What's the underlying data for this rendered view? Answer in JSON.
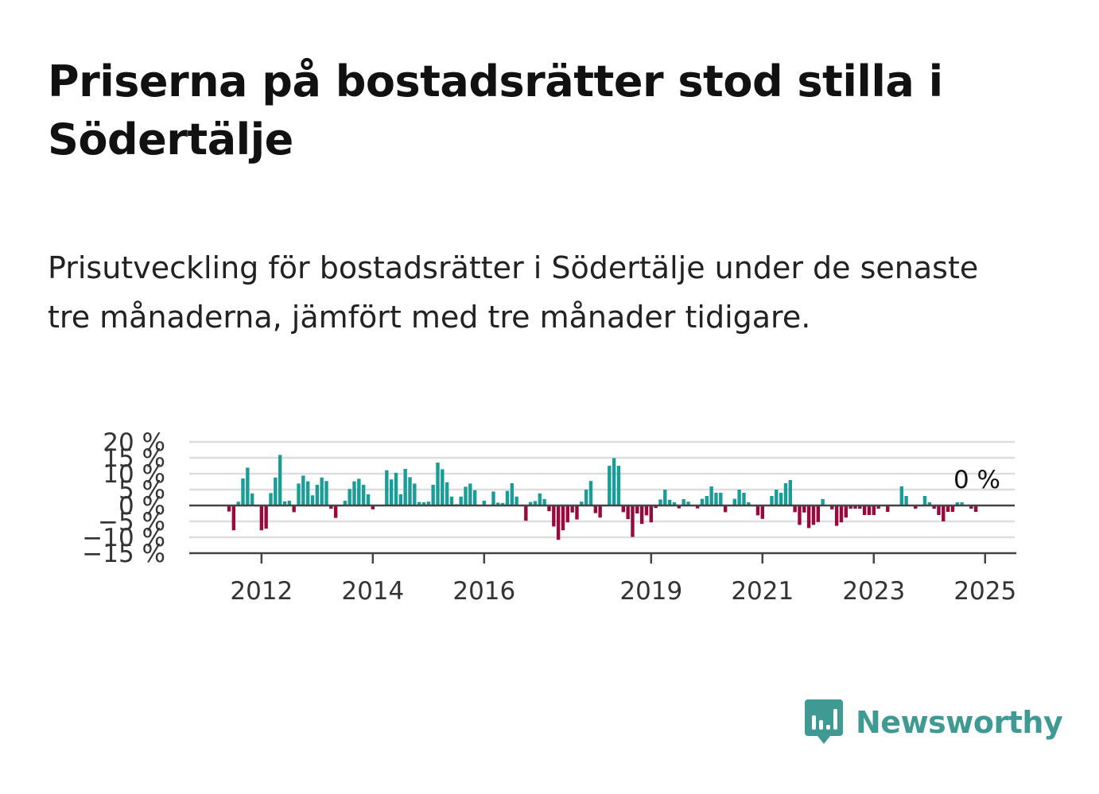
{
  "title": "Priserna på bostadsrätter stod stilla i Södertälje",
  "subtitle": "Prisutveckling för bostadsrätter i Södertälje under de senaste tre månaderna, jämfört med tre månader tidigare.",
  "brand": {
    "name": "Newsworthy",
    "icon": "newsworthy-logo-icon",
    "color": "#3f9a94"
  },
  "chart_data": {
    "type": "bar",
    "title": "",
    "xlabel": "",
    "ylabel": "",
    "ylim": [
      -15,
      20
    ],
    "y_ticks": [
      {
        "value": 20,
        "label": "20 %"
      },
      {
        "value": 15,
        "label": "15 %"
      },
      {
        "value": 10,
        "label": "10 %"
      },
      {
        "value": 5,
        "label": "5 %"
      },
      {
        "value": 0,
        "label": "0 %"
      },
      {
        "value": -5,
        "label": "−5 %"
      },
      {
        "value": -10,
        "label": "−10 %"
      },
      {
        "value": -15,
        "label": "−15 %"
      }
    ],
    "x_ticks": [
      {
        "index": 7,
        "label": "2012"
      },
      {
        "index": 31,
        "label": "2014"
      },
      {
        "index": 55,
        "label": "2016"
      },
      {
        "index": 91,
        "label": "2019"
      },
      {
        "index": 115,
        "label": "2021"
      },
      {
        "index": 139,
        "label": "2023"
      },
      {
        "index": 163,
        "label": "2025"
      }
    ],
    "grid": true,
    "legend": "none",
    "colors": {
      "positive": "#1a9c97",
      "negative": "#99093e",
      "grid": "#dddddd",
      "axis": "#444444"
    },
    "last_value_label": "0 %",
    "values": [
      -1.9,
      -7.8,
      1.2,
      8.5,
      11.9,
      3.8,
      -0.3,
      -7.8,
      -7.3,
      3.9,
      8.8,
      15.9,
      1.3,
      1.5,
      -2.1,
      6.9,
      9.4,
      7.6,
      3.2,
      6.5,
      8.8,
      7.7,
      -1,
      -3.9,
      -0.3,
      1.5,
      5.2,
      7.6,
      8.4,
      6.5,
      3.5,
      -1.2,
      -0.2,
      0,
      11.1,
      8.2,
      10.3,
      3.5,
      11.5,
      8.9,
      6.9,
      1.1,
      1,
      1.2,
      6.5,
      13.5,
      11.4,
      7.3,
      2.8,
      0.4,
      2.8,
      5.9,
      6.9,
      4.8,
      0,
      1.5,
      0.2,
      4.4,
      0.9,
      0.8,
      4.6,
      7,
      2.8,
      0,
      -4.8,
      1.1,
      1.4,
      3.8,
      2,
      -1.8,
      -6.6,
      -10.8,
      -7.8,
      -5.3,
      -2.2,
      -4.4,
      1.2,
      5,
      7.7,
      -2.4,
      -3.8,
      0,
      12.5,
      14.9,
      12.5,
      -2.1,
      -4.3,
      -9.9,
      -2.5,
      -5.8,
      -3.1,
      -5.3,
      -0.8,
      1.9,
      5,
      1.8,
      1,
      -0.9,
      2,
      1.2,
      0,
      -0.9,
      2.1,
      3,
      6,
      4,
      4,
      -2.1,
      0,
      2.1,
      5,
      4,
      1,
      0,
      -3.1,
      -4.2,
      0,
      3,
      5,
      4,
      7,
      8,
      -2.1,
      -6.1,
      -2.2,
      -7.1,
      -6.1,
      -5.2,
      2,
      0,
      -1.2,
      -6.4,
      -5.3,
      -3.8,
      -1,
      -1,
      -1,
      -3,
      -3,
      -3,
      -1,
      0,
      -2,
      0,
      0,
      6,
      3,
      0,
      -1,
      0,
      3,
      1,
      -1,
      -3,
      -5,
      -2,
      -2,
      1,
      1,
      0,
      -1,
      -2,
      0,
      0,
      0
    ]
  }
}
